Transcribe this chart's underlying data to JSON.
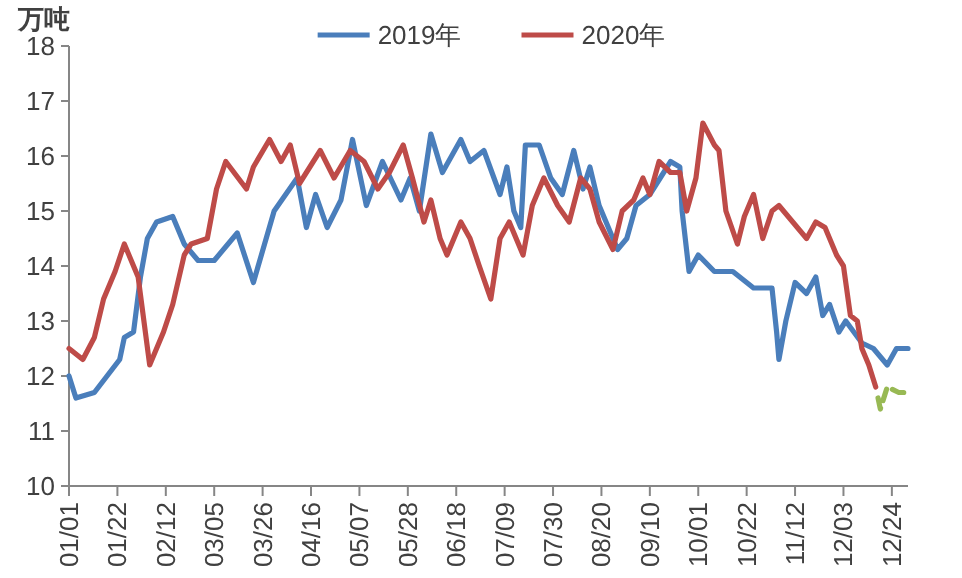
{
  "chart_data": {
    "type": "line",
    "ylabel": "万吨",
    "legend": "top",
    "ylim": [
      10,
      18
    ],
    "yticks": [
      10,
      11,
      12,
      13,
      14,
      15,
      16,
      17,
      18
    ],
    "xlim": [
      "--01-01",
      "--12-31"
    ],
    "xticks": [
      {
        "value": "--01-01",
        "label": "01/01"
      },
      {
        "value": "--01-22",
        "label": "01/22"
      },
      {
        "value": "--02-12",
        "label": "02/12"
      },
      {
        "value": "--03-05",
        "label": "03/05"
      },
      {
        "value": "--03-26",
        "label": "03/26"
      },
      {
        "value": "--04-16",
        "label": "04/16"
      },
      {
        "value": "--05-07",
        "label": "05/07"
      },
      {
        "value": "--05-28",
        "label": "05/28"
      },
      {
        "value": "--06-18",
        "label": "06/18"
      },
      {
        "value": "--07-09",
        "label": "07/09"
      },
      {
        "value": "--07-30",
        "label": "07/30"
      },
      {
        "value": "--08-20",
        "label": "08/20"
      },
      {
        "value": "--09-10",
        "label": "09/10"
      },
      {
        "value": "--10-01",
        "label": "10/01"
      },
      {
        "value": "--10-22",
        "label": "10/22"
      },
      {
        "value": "--11-12",
        "label": "11/12"
      },
      {
        "value": "--12-03",
        "label": "12/03"
      },
      {
        "value": "--12-24",
        "label": "12/24"
      }
    ],
    "series": [
      {
        "name": "2019年",
        "color": "#4a7ebb",
        "x": [
          "--01-01",
          "--01-04",
          "--01-12",
          "--01-23",
          "--01-25",
          "--01-29",
          "--02-01",
          "--02-04",
          "--02-08",
          "--02-15",
          "--02-20",
          "--02-26",
          "--03-05",
          "--03-15",
          "--03-22",
          "--03-31",
          "--04-10",
          "--04-14",
          "--04-18",
          "--04-23",
          "--04-29",
          "--05-04",
          "--05-10",
          "--05-17",
          "--05-25",
          "--05-29",
          "--06-02",
          "--06-07",
          "--06-12",
          "--06-20",
          "--06-24",
          "--06-30",
          "--07-07",
          "--07-10",
          "--07-13",
          "--07-16",
          "--07-18",
          "--07-24",
          "--07-29",
          "--08-03",
          "--08-08",
          "--08-12",
          "--08-15",
          "--08-19",
          "--08-22",
          "--08-27",
          "--08-31",
          "--09-04",
          "--09-10",
          "--09-19",
          "--09-23",
          "--09-24",
          "--09-27",
          "--10-01",
          "--10-08",
          "--10-16",
          "--10-22",
          "--10-25",
          "--11-02",
          "--11-04",
          "--11-05",
          "--11-08",
          "--11-12",
          "--11-17",
          "--11-21",
          "--11-24",
          "--11-27",
          "--12-01",
          "--12-04",
          "--12-11",
          "--12-16",
          "--12-22",
          "--12-26",
          "--12-31"
        ],
        "values": [
          12.0,
          11.6,
          11.7,
          12.3,
          12.7,
          12.8,
          13.8,
          14.5,
          14.8,
          14.9,
          14.4,
          14.1,
          14.1,
          14.6,
          13.7,
          15.0,
          15.6,
          14.7,
          15.3,
          14.7,
          15.2,
          16.3,
          15.1,
          15.9,
          15.2,
          15.6,
          15.0,
          16.4,
          15.7,
          16.3,
          15.9,
          16.1,
          15.3,
          15.8,
          15.0,
          14.7,
          16.2,
          16.2,
          15.6,
          15.3,
          16.1,
          15.4,
          15.8,
          15.1,
          14.8,
          14.3,
          14.5,
          15.1,
          15.3,
          15.9,
          15.8,
          15.0,
          13.9,
          14.2,
          13.9,
          13.9,
          13.7,
          13.6,
          13.6,
          12.8,
          12.3,
          13.0,
          13.7,
          13.5,
          13.8,
          13.1,
          13.3,
          12.8,
          13.0,
          12.6,
          12.5,
          12.2,
          12.5,
          12.5
        ]
      },
      {
        "name": "2020年",
        "color": "#be4b48",
        "x": [
          "--01-01",
          "--01-07",
          "--01-12",
          "--01-16",
          "--01-21",
          "--01-25",
          "--01-31",
          "--02-05",
          "--02-11",
          "--02-15",
          "--02-20",
          "--02-23",
          "--03-02",
          "--03-06",
          "--03-10",
          "--03-19",
          "--03-22",
          "--03-29",
          "--04-03",
          "--04-07",
          "--04-11",
          "--04-20",
          "--04-26",
          "--05-03",
          "--05-09",
          "--05-15",
          "--05-20",
          "--05-26",
          "--05-30",
          "--06-04",
          "--06-07",
          "--06-11",
          "--06-14",
          "--06-20",
          "--06-24",
          "--06-28",
          "--07-03",
          "--07-07",
          "--07-11",
          "--07-17",
          "--07-21",
          "--07-26",
          "--08-01",
          "--08-06",
          "--08-11",
          "--08-15",
          "--08-19",
          "--08-25",
          "--08-29",
          "--09-03",
          "--09-07",
          "--09-10",
          "--09-14",
          "--09-19",
          "--09-23",
          "--09-26",
          "--09-30",
          "--10-03",
          "--10-08",
          "--10-10",
          "--10-13",
          "--10-18",
          "--10-21",
          "--10-25",
          "--10-29",
          "--11-02",
          "--11-05",
          "--11-11",
          "--11-17",
          "--11-21",
          "--11-25",
          "--11-30",
          "--12-03",
          "--12-06",
          "--12-09",
          "--12-11",
          "--12-14",
          "--12-17"
        ],
        "values": [
          12.5,
          12.3,
          12.7,
          13.4,
          13.9,
          14.4,
          13.8,
          12.2,
          12.8,
          13.3,
          14.2,
          14.4,
          14.5,
          15.4,
          15.9,
          15.4,
          15.8,
          16.3,
          15.9,
          16.2,
          15.5,
          16.1,
          15.6,
          16.1,
          15.9,
          15.4,
          15.7,
          16.2,
          15.6,
          14.8,
          15.2,
          14.5,
          14.2,
          14.8,
          14.5,
          14.0,
          13.4,
          14.5,
          14.8,
          14.2,
          15.1,
          15.6,
          15.1,
          14.8,
          15.6,
          15.4,
          14.8,
          14.3,
          15.0,
          15.2,
          15.6,
          15.3,
          15.9,
          15.7,
          15.7,
          15.0,
          15.6,
          16.6,
          16.2,
          16.1,
          15.0,
          14.4,
          14.9,
          15.3,
          14.5,
          15.0,
          15.1,
          14.8,
          14.5,
          14.8,
          14.7,
          14.2,
          14.0,
          13.1,
          13.0,
          12.5,
          12.2,
          11.8
        ]
      },
      {
        "color": "#98b954",
        "line_style": "dashed",
        "x": [
          "--12-18",
          "--12-19",
          "--12-22",
          "--12-27",
          "--12-31"
        ],
        "values": [
          11.6,
          11.4,
          11.8,
          11.7,
          11.7
        ]
      }
    ]
  }
}
